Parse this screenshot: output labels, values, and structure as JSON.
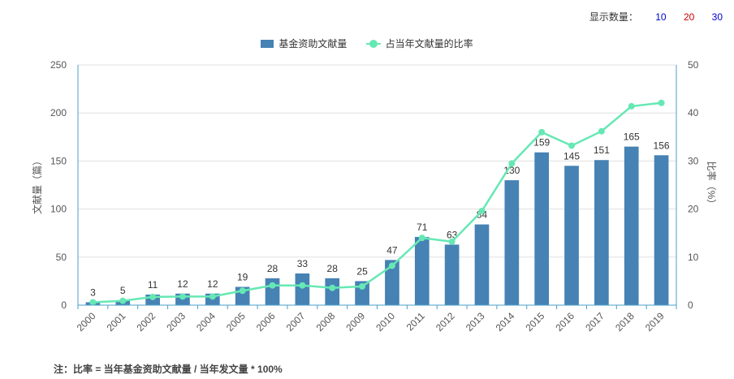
{
  "controls": {
    "label": "显示数量：",
    "options": [
      "10",
      "20",
      "30"
    ],
    "option_colors": [
      "#0000cc",
      "#cc0000",
      "#0000cc"
    ]
  },
  "legend": {
    "bar_label": "基金资助文献量",
    "line_label": "占当年文献量的比率"
  },
  "note": "注：比率 = 当年基金资助文献量 / 当年发文量 * 100%",
  "colors": {
    "bar": "#4682b4",
    "line": "#66e8b4",
    "axis": "#4a9fc8",
    "grid": "#e0e0e0",
    "text": "#555555"
  },
  "chart_data": {
    "type": "bar",
    "categories": [
      "2000",
      "2001",
      "2002",
      "2003",
      "2004",
      "2005",
      "2006",
      "2007",
      "2008",
      "2009",
      "2010",
      "2011",
      "2012",
      "2013",
      "2014",
      "2015",
      "2016",
      "2017",
      "2018",
      "2019"
    ],
    "series": [
      {
        "name": "基金资助文献量",
        "type": "bar",
        "axis": "left",
        "values": [
          3,
          5,
          11,
          12,
          12,
          19,
          28,
          33,
          28,
          25,
          47,
          71,
          63,
          84,
          130,
          159,
          145,
          151,
          165,
          156
        ]
      },
      {
        "name": "占当年文献量的比率",
        "type": "line",
        "axis": "right",
        "values": [
          0.6,
          0.9,
          1.7,
          1.8,
          1.8,
          3.0,
          4.1,
          4.1,
          3.6,
          3.9,
          8.2,
          14.0,
          13.2,
          19.6,
          29.5,
          36.0,
          33.2,
          36.2,
          41.4,
          42.1
        ]
      }
    ],
    "ylabel": "文献量（篇）",
    "y2label": "比率（%）",
    "ylim": [
      0,
      250
    ],
    "y2lim": [
      0,
      50
    ],
    "yticks": [
      0,
      50,
      100,
      150,
      200,
      250
    ],
    "y2ticks": [
      0,
      10,
      20,
      30,
      40,
      50
    ],
    "grid": true,
    "data_labels": true,
    "legend_position": "top-center"
  }
}
